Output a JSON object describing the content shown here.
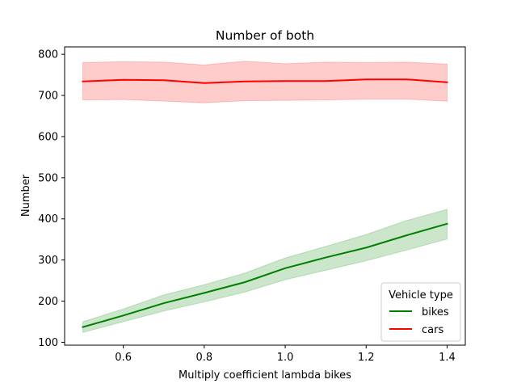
{
  "chart_data": {
    "type": "line",
    "title": "Number of both",
    "xlabel": "Multiply coefficient lambda bikes",
    "ylabel": "Number",
    "xlim": [
      0.455,
      1.445
    ],
    "ylim": [
      93,
      818
    ],
    "xticks": [
      0.6,
      0.8,
      1.0,
      1.2,
      1.4
    ],
    "xtick_labels": [
      "0.6",
      "0.8",
      "1.0",
      "1.2",
      "1.4"
    ],
    "yticks": [
      100,
      200,
      300,
      400,
      500,
      600,
      700,
      800
    ],
    "ytick_labels": [
      "100",
      "200",
      "300",
      "400",
      "500",
      "600",
      "700",
      "800"
    ],
    "grid": false,
    "legend": {
      "title": "Vehicle type",
      "placement": "lower-right"
    },
    "x": [
      0.5,
      0.6,
      0.7,
      0.8,
      0.9,
      1.0,
      1.1,
      1.2,
      1.3,
      1.4
    ],
    "series": [
      {
        "name": "bikes",
        "color": "#008000",
        "band_color": "#008000",
        "values": [
          137,
          165,
          195,
          220,
          246,
          280,
          306,
          330,
          360,
          388
        ],
        "lower": [
          124,
          150,
          176,
          198,
          222,
          252,
          275,
          298,
          324,
          351
        ],
        "upper": [
          150,
          181,
          215,
          240,
          268,
          305,
          333,
          362,
          396,
          423
        ]
      },
      {
        "name": "cars",
        "color": "#ff0000",
        "band_color": "#ff0000",
        "values": [
          734,
          738,
          737,
          730,
          734,
          735,
          735,
          739,
          739,
          732
        ],
        "lower": [
          689,
          690,
          686,
          682,
          687,
          688,
          689,
          691,
          691,
          686
        ],
        "upper": [
          780,
          782,
          781,
          774,
          783,
          777,
          781,
          780,
          781,
          776
        ]
      }
    ]
  }
}
